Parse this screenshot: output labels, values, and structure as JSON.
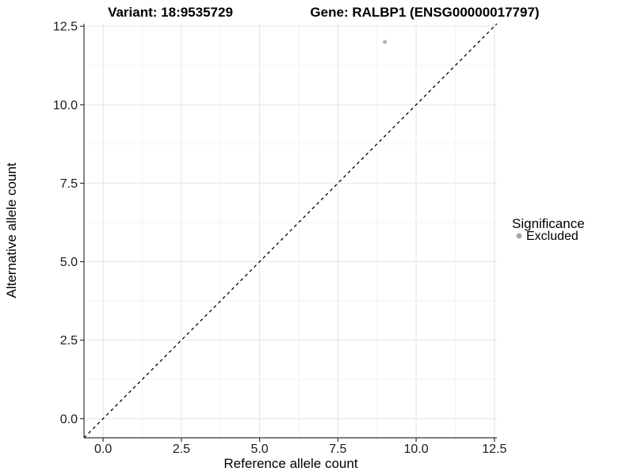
{
  "chart_data": {
    "type": "scatter",
    "title_left": "Variant: 18:9535729",
    "title_right": "Gene: RALBP1 (ENSG00000017797)",
    "xlabel": "Reference allele count",
    "ylabel": "Alternative allele count",
    "xlim": [
      -0.61,
      12.58
    ],
    "ylim": [
      -0.61,
      12.58
    ],
    "x_ticks": [
      0,
      2.5,
      5,
      7.5,
      10,
      12.5
    ],
    "x_tick_labels": [
      "0.0",
      "2.5",
      "5.0",
      "7.5",
      "10.0",
      "12.5"
    ],
    "y_ticks": [
      0,
      2.5,
      5,
      7.5,
      10,
      12.5
    ],
    "y_tick_labels": [
      "0.0",
      "2.5",
      "5.0",
      "7.5",
      "10.0",
      "12.5"
    ],
    "grid": true,
    "minor_grid": true,
    "reference_line": {
      "type": "identity",
      "style": "dashed",
      "color": "#000000"
    },
    "points": [
      {
        "x": 9,
        "y": 12,
        "series": "Excluded",
        "color": "#b4b4b4",
        "radius": 2.5
      }
    ],
    "legend": {
      "title": "Significance",
      "position": "right",
      "items": [
        {
          "label": "Excluded",
          "color": "#a8a8a8"
        }
      ]
    },
    "colors": {
      "background": "#ffffff",
      "grid_major": "#e4e4e4",
      "grid_minor": "#f2f2f2",
      "axis_line": "#333333",
      "tick_text": "#1a1a1a"
    }
  }
}
